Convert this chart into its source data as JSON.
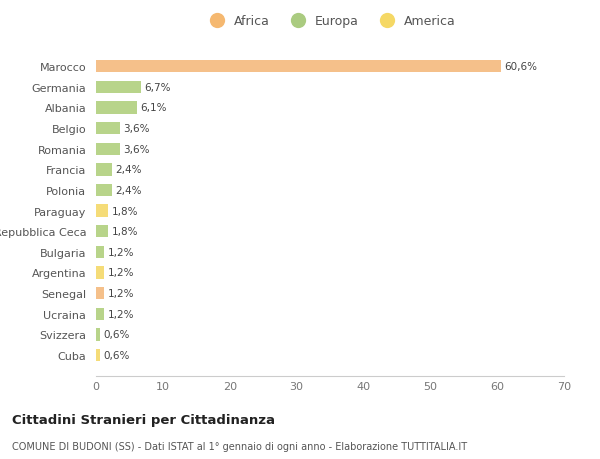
{
  "countries": [
    "Marocco",
    "Germania",
    "Albania",
    "Belgio",
    "Romania",
    "Francia",
    "Polonia",
    "Paraguay",
    "Repubblica Ceca",
    "Bulgaria",
    "Argentina",
    "Senegal",
    "Ucraina",
    "Svizzera",
    "Cuba"
  ],
  "values": [
    60.6,
    6.7,
    6.1,
    3.6,
    3.6,
    2.4,
    2.4,
    1.8,
    1.8,
    1.2,
    1.2,
    1.2,
    1.2,
    0.6,
    0.6
  ],
  "labels": [
    "60,6%",
    "6,7%",
    "6,1%",
    "3,6%",
    "3,6%",
    "2,4%",
    "2,4%",
    "1,8%",
    "1,8%",
    "1,2%",
    "1,2%",
    "1,2%",
    "1,2%",
    "0,6%",
    "0,6%"
  ],
  "continents": [
    "Africa",
    "Europa",
    "Europa",
    "Europa",
    "Europa",
    "Europa",
    "Europa",
    "America",
    "Europa",
    "Europa",
    "America",
    "Africa",
    "Europa",
    "Europa",
    "America"
  ],
  "bar_colors": {
    "Africa": "#F5C08A",
    "Europa": "#B8D48A",
    "America": "#F5DC78"
  },
  "legend_circle_colors": {
    "Africa": "#F5B870",
    "Europa": "#AACB80",
    "America": "#F5D865"
  },
  "background_color": "#FFFFFF",
  "plot_bg_color": "#FFFFFF",
  "title": "Cittadini Stranieri per Cittadinanza",
  "subtitle": "COMUNE DI BUDONI (SS) - Dati ISTAT al 1° gennaio di ogni anno - Elaborazione TUTTITALIA.IT",
  "xlim": [
    0,
    70
  ],
  "xticks": [
    0,
    10,
    20,
    30,
    40,
    50,
    60,
    70
  ],
  "legend_order": [
    "Africa",
    "Europa",
    "America"
  ]
}
